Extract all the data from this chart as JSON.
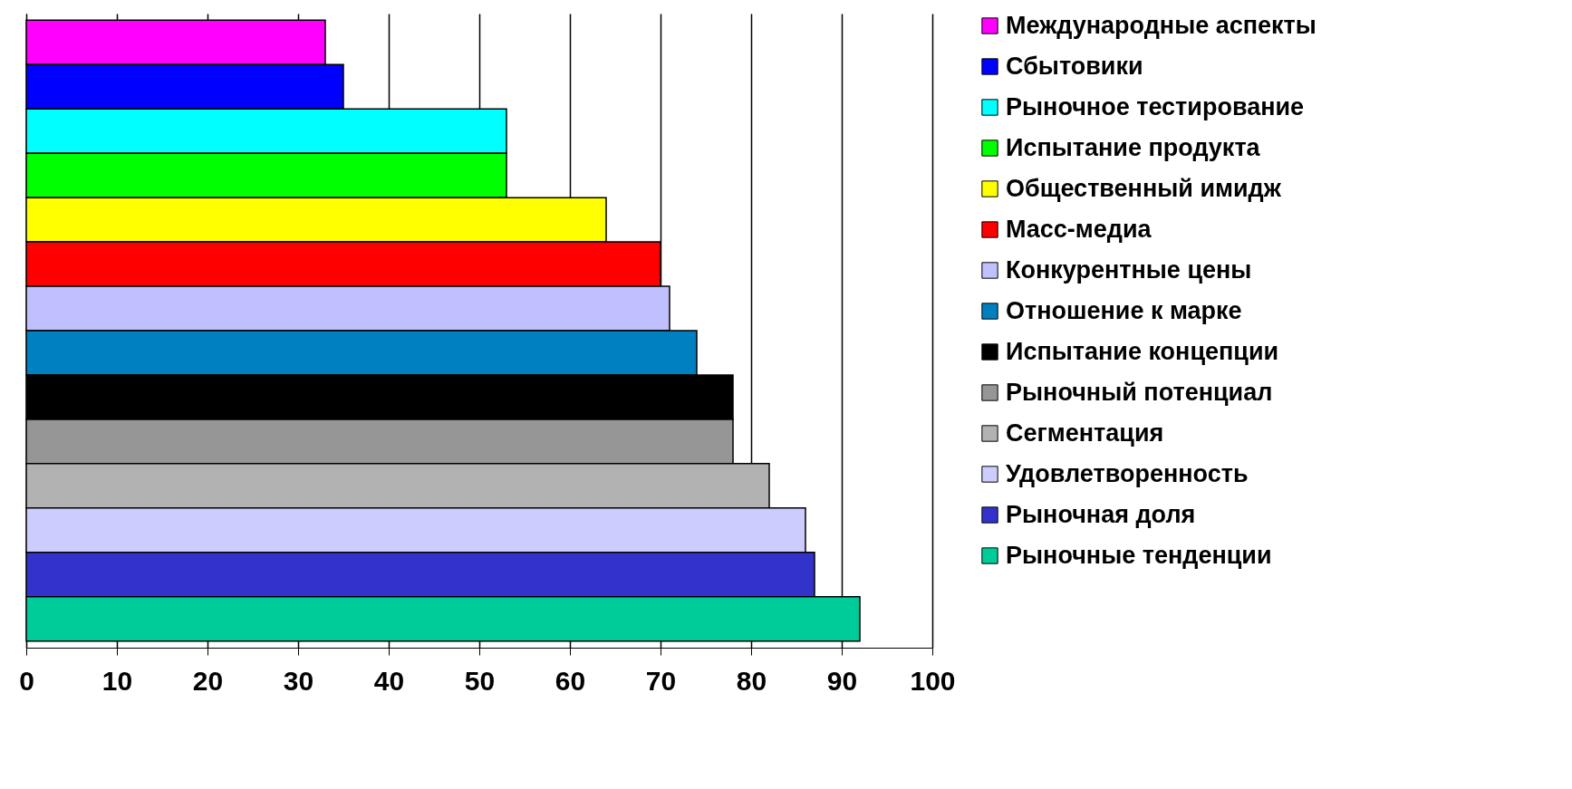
{
  "chart_data": {
    "type": "bar",
    "orientation": "horizontal",
    "categories": [
      null,
      null,
      null,
      null,
      null,
      null,
      null,
      null,
      null,
      null,
      null,
      null,
      null,
      null
    ],
    "series": [
      {
        "name": "Международные аспекты",
        "color": "#ff00ff",
        "values": [
          33,
          null,
          null,
          null,
          null,
          null,
          null,
          null,
          null,
          null,
          null,
          null,
          null,
          null
        ]
      },
      {
        "name": "Сбытовики",
        "color": "#0000ff",
        "values": [
          null,
          35,
          null,
          null,
          null,
          null,
          null,
          null,
          null,
          null,
          null,
          null,
          null,
          null
        ]
      },
      {
        "name": "Рыночное тестирование",
        "color": "#00ffff",
        "values": [
          null,
          null,
          53,
          null,
          null,
          null,
          null,
          null,
          null,
          null,
          null,
          null,
          null,
          null
        ]
      },
      {
        "name": "Испытание продукта",
        "color": "#00ff00",
        "values": [
          null,
          null,
          null,
          53,
          null,
          null,
          null,
          null,
          null,
          null,
          null,
          null,
          null,
          null
        ]
      },
      {
        "name": "Общественный имидж",
        "color": "#ffff00",
        "values": [
          null,
          null,
          null,
          null,
          64,
          null,
          null,
          null,
          null,
          null,
          null,
          null,
          null,
          null
        ]
      },
      {
        "name": "Масс-медиа",
        "color": "#ff0000",
        "values": [
          null,
          null,
          null,
          null,
          null,
          70,
          null,
          null,
          null,
          null,
          null,
          null,
          null,
          null
        ]
      },
      {
        "name": "Конкурентные цены",
        "color": "#c0c0ff",
        "values": [
          null,
          null,
          null,
          null,
          null,
          null,
          71,
          null,
          null,
          null,
          null,
          null,
          null,
          null
        ]
      },
      {
        "name": "Отношение к марке",
        "color": "#0080c0",
        "values": [
          null,
          null,
          null,
          null,
          null,
          null,
          null,
          74,
          null,
          null,
          null,
          null,
          null,
          null
        ]
      },
      {
        "name": "Испытание концепции",
        "color": "#000000",
        "values": [
          null,
          null,
          null,
          null,
          null,
          null,
          null,
          null,
          78,
          null,
          null,
          null,
          null,
          null
        ]
      },
      {
        "name": "Рыночный потенциал",
        "color": "#969696",
        "values": [
          null,
          null,
          null,
          null,
          null,
          null,
          null,
          null,
          null,
          78,
          null,
          null,
          null,
          null
        ]
      },
      {
        "name": "Сегментация",
        "color": "#b2b2b2",
        "values": [
          null,
          null,
          null,
          null,
          null,
          null,
          null,
          null,
          null,
          null,
          82,
          null,
          null,
          null
        ]
      },
      {
        "name": "Удовлетворенность",
        "color": "#ccccff",
        "values": [
          null,
          null,
          null,
          null,
          null,
          null,
          null,
          null,
          null,
          null,
          null,
          86,
          null,
          null
        ]
      },
      {
        "name": "Рыночная доля",
        "color": "#3333cc",
        "values": [
          null,
          null,
          null,
          null,
          null,
          null,
          null,
          null,
          null,
          null,
          null,
          null,
          87,
          null
        ]
      },
      {
        "name": "Рыночные тенденции",
        "color": "#00cc99",
        "values": [
          null,
          null,
          null,
          null,
          null,
          null,
          null,
          null,
          null,
          null,
          null,
          null,
          null,
          92
        ]
      }
    ],
    "xlim": [
      0,
      100
    ],
    "xticks": [
      0,
      10,
      20,
      30,
      40,
      50,
      60,
      70,
      80,
      90,
      100
    ],
    "grid": "x",
    "legend": "right"
  }
}
